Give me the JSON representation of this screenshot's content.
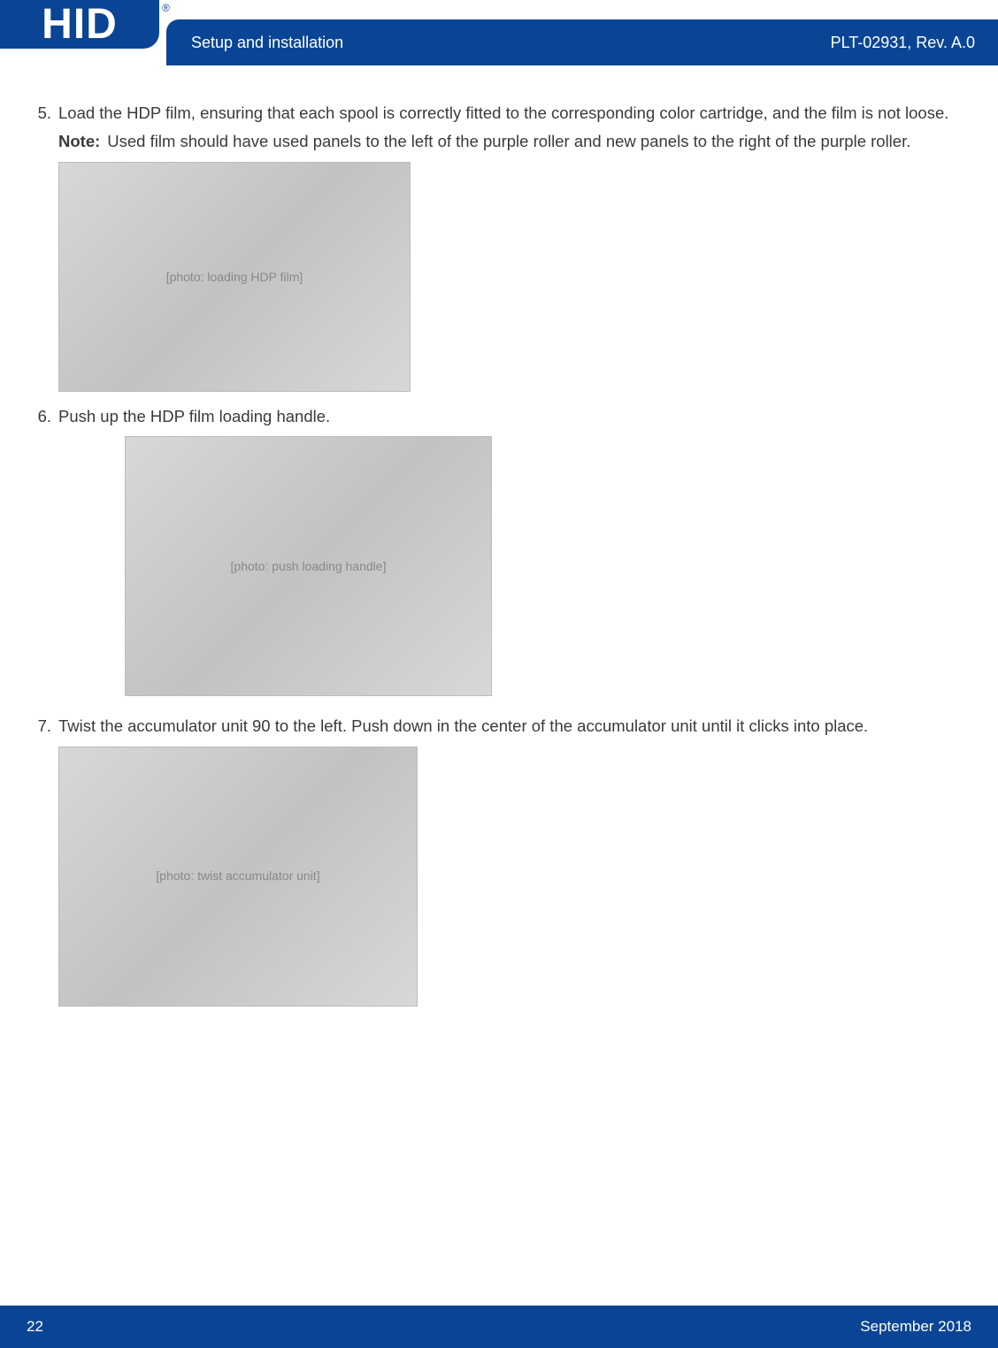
{
  "header": {
    "logo": "HID",
    "reg": "®",
    "section_title": "Setup and installation",
    "doc_ref": "PLT-02931, Rev. A.0"
  },
  "steps": [
    {
      "num": "5.",
      "text": "Load the HDP film, ensuring that each spool is correctly fitted to the corresponding color cartridge, and the film is not loose.",
      "note_label": "Note:",
      "note_text": "Used film should have used panels to the left of the purple roller and new panels to the right of the purple roller.",
      "image_alt": "[photo: loading HDP film]"
    },
    {
      "num": "6.",
      "text": "Push up the HDP film loading handle.",
      "image_alt": "[photo: push loading handle]"
    },
    {
      "num": "7.",
      "text": "Twist the accumulator unit 90 to the left. Push down in the center of the accumulator unit until it clicks into place.",
      "image_alt": "[photo: twist accumulator unit]"
    }
  ],
  "footer": {
    "page": "22",
    "date": "September 2018"
  },
  "colors": {
    "brand": "#0a4595",
    "text": "#3a3a3a",
    "bg": "#ffffff"
  }
}
